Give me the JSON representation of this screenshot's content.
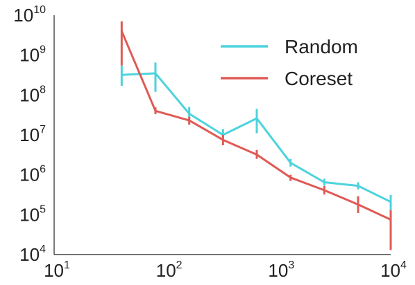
{
  "chart_data": {
    "type": "line",
    "title": "",
    "xlabel": "",
    "ylabel": "",
    "xscale": "log",
    "yscale": "log",
    "xlim": [
      10,
      10000
    ],
    "ylim": [
      10000,
      10000000000
    ],
    "grid": false,
    "legend_position": "top-right",
    "x_ticks": [
      {
        "base": "10",
        "exp": "1"
      },
      {
        "base": "10",
        "exp": "2"
      },
      {
        "base": "10",
        "exp": "3"
      },
      {
        "base": "10",
        "exp": "4"
      }
    ],
    "y_ticks": [
      {
        "base": "10",
        "exp": "4"
      },
      {
        "base": "10",
        "exp": "5"
      },
      {
        "base": "10",
        "exp": "6"
      },
      {
        "base": "10",
        "exp": "7"
      },
      {
        "base": "10",
        "exp": "8"
      },
      {
        "base": "10",
        "exp": "9"
      },
      {
        "base": "10",
        "exp": "10"
      }
    ],
    "series": [
      {
        "name": "Random",
        "color": "#4dd3dd",
        "x": [
          40,
          80,
          160,
          320,
          640,
          1280,
          2560,
          5120,
          10000
        ],
        "y": [
          320000000,
          350000000,
          34000000,
          10000000,
          26000000,
          2000000,
          650000,
          530000,
          210000
        ],
        "err_low": [
          170000000,
          120000000,
          23000000,
          7500000,
          11000000,
          1600000,
          530000,
          430000,
          130000
        ],
        "err_high": [
          550000000,
          650000000,
          50000000,
          14000000,
          45000000,
          2500000,
          800000,
          650000,
          310000
        ]
      },
      {
        "name": "Coreset",
        "color": "#e05a55",
        "x": [
          40,
          80,
          160,
          320,
          640,
          1280,
          2560,
          5120,
          10000
        ],
        "y": [
          4000000000,
          40000000,
          23000000,
          7500000,
          3200000,
          850000,
          410000,
          180000,
          75000
        ],
        "err_low": [
          550000000,
          33000000,
          18000000,
          5500000,
          2500000,
          700000,
          320000,
          110000,
          13000
        ],
        "err_high": [
          7000000000,
          49000000,
          28000000,
          10000000,
          4200000,
          1000000,
          520000,
          290000,
          130000
        ]
      }
    ]
  }
}
